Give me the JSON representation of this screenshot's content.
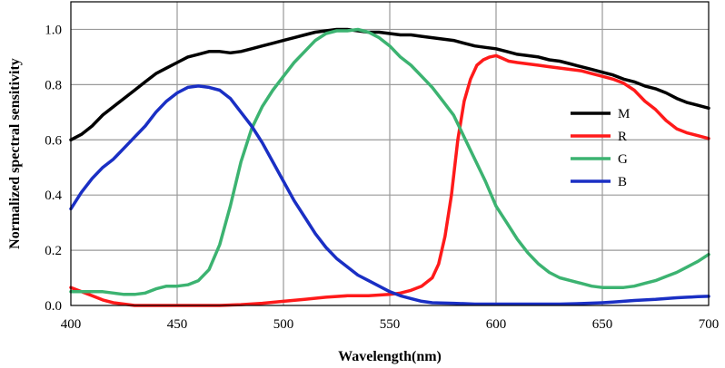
{
  "chart_data": {
    "type": "line",
    "title": "",
    "xlabel": "Wavelength(nm)",
    "ylabel": "Normalized spectral sensitivity",
    "xlim": [
      400,
      700
    ],
    "ylim": [
      0,
      1.1
    ],
    "grid": true,
    "legend_position": "right",
    "x_ticks": [
      400,
      450,
      500,
      550,
      600,
      650,
      700
    ],
    "x_tick_labels": [
      "400",
      "450",
      "500",
      "550",
      "600",
      "650",
      "700"
    ],
    "y_ticks": [
      0,
      0.2,
      0.4,
      0.6,
      0.8,
      1.0
    ],
    "y_tick_labels": [
      "0.0",
      "0.2",
      "0.4",
      "0.6",
      "0.8",
      "1.0"
    ],
    "series": [
      {
        "name": "M",
        "color": "#000000",
        "x": [
          400,
          405,
          410,
          415,
          420,
          425,
          430,
          435,
          440,
          445,
          450,
          455,
          460,
          465,
          470,
          475,
          480,
          485,
          490,
          495,
          500,
          505,
          510,
          515,
          520,
          525,
          530,
          535,
          540,
          545,
          550,
          555,
          560,
          565,
          570,
          575,
          580,
          585,
          590,
          595,
          600,
          605,
          610,
          615,
          620,
          625,
          630,
          635,
          640,
          645,
          650,
          655,
          660,
          665,
          670,
          675,
          680,
          685,
          690,
          695,
          700
        ],
        "values": [
          0.6,
          0.62,
          0.65,
          0.69,
          0.72,
          0.75,
          0.78,
          0.81,
          0.84,
          0.86,
          0.88,
          0.9,
          0.91,
          0.92,
          0.92,
          0.915,
          0.92,
          0.93,
          0.94,
          0.95,
          0.96,
          0.97,
          0.98,
          0.99,
          0.995,
          1.0,
          1.0,
          0.995,
          0.99,
          0.99,
          0.985,
          0.98,
          0.98,
          0.975,
          0.97,
          0.965,
          0.96,
          0.95,
          0.94,
          0.935,
          0.93,
          0.92,
          0.91,
          0.905,
          0.9,
          0.89,
          0.885,
          0.875,
          0.865,
          0.855,
          0.845,
          0.835,
          0.82,
          0.81,
          0.795,
          0.785,
          0.77,
          0.75,
          0.735,
          0.725,
          0.715
        ]
      },
      {
        "name": "R",
        "color": "#ff1a1a",
        "x": [
          400,
          405,
          410,
          415,
          420,
          425,
          430,
          435,
          440,
          445,
          450,
          460,
          470,
          480,
          490,
          500,
          510,
          520,
          530,
          540,
          550,
          555,
          560,
          565,
          570,
          573,
          576,
          579,
          582,
          585,
          588,
          591,
          594,
          597,
          600,
          603,
          606,
          610,
          615,
          620,
          625,
          630,
          635,
          640,
          645,
          650,
          655,
          660,
          665,
          670,
          675,
          680,
          685,
          690,
          695,
          700
        ],
        "values": [
          0.065,
          0.05,
          0.035,
          0.02,
          0.01,
          0.005,
          0.0,
          0.0,
          0.0,
          0.0,
          0.0,
          0.0,
          0.0,
          0.003,
          0.008,
          0.015,
          0.022,
          0.03,
          0.035,
          0.035,
          0.04,
          0.045,
          0.055,
          0.07,
          0.1,
          0.15,
          0.25,
          0.4,
          0.6,
          0.74,
          0.82,
          0.87,
          0.89,
          0.9,
          0.905,
          0.895,
          0.885,
          0.88,
          0.875,
          0.87,
          0.865,
          0.86,
          0.855,
          0.85,
          0.84,
          0.83,
          0.82,
          0.805,
          0.78,
          0.74,
          0.71,
          0.67,
          0.64,
          0.625,
          0.615,
          0.605
        ]
      },
      {
        "name": "G",
        "color": "#3cb371",
        "x": [
          400,
          405,
          410,
          415,
          420,
          425,
          430,
          435,
          440,
          445,
          450,
          455,
          460,
          465,
          470,
          475,
          480,
          485,
          490,
          495,
          500,
          505,
          510,
          515,
          520,
          525,
          530,
          535,
          540,
          545,
          550,
          555,
          560,
          565,
          570,
          575,
          580,
          585,
          590,
          595,
          600,
          605,
          610,
          615,
          620,
          625,
          630,
          635,
          640,
          645,
          650,
          655,
          660,
          665,
          670,
          675,
          680,
          685,
          690,
          695,
          700
        ],
        "values": [
          0.05,
          0.05,
          0.05,
          0.05,
          0.045,
          0.04,
          0.04,
          0.045,
          0.06,
          0.07,
          0.07,
          0.075,
          0.09,
          0.13,
          0.22,
          0.36,
          0.52,
          0.64,
          0.72,
          0.78,
          0.83,
          0.88,
          0.92,
          0.96,
          0.985,
          0.995,
          0.995,
          1.0,
          0.99,
          0.97,
          0.94,
          0.9,
          0.87,
          0.83,
          0.79,
          0.74,
          0.69,
          0.61,
          0.53,
          0.45,
          0.36,
          0.3,
          0.24,
          0.19,
          0.15,
          0.12,
          0.1,
          0.09,
          0.08,
          0.07,
          0.065,
          0.065,
          0.065,
          0.07,
          0.08,
          0.09,
          0.105,
          0.12,
          0.14,
          0.16,
          0.185
        ]
      },
      {
        "name": "B",
        "color": "#1a2fc4",
        "x": [
          400,
          405,
          410,
          415,
          420,
          425,
          430,
          435,
          440,
          445,
          450,
          455,
          460,
          465,
          470,
          475,
          480,
          485,
          490,
          495,
          500,
          505,
          510,
          515,
          520,
          525,
          530,
          535,
          540,
          545,
          550,
          555,
          560,
          565,
          570,
          580,
          590,
          600,
          610,
          620,
          630,
          640,
          650,
          655,
          660,
          665,
          670,
          675,
          680,
          685,
          690,
          695,
          700
        ],
        "values": [
          0.35,
          0.41,
          0.46,
          0.5,
          0.53,
          0.57,
          0.61,
          0.65,
          0.7,
          0.74,
          0.77,
          0.79,
          0.795,
          0.79,
          0.78,
          0.75,
          0.7,
          0.65,
          0.59,
          0.52,
          0.45,
          0.38,
          0.32,
          0.26,
          0.21,
          0.17,
          0.14,
          0.11,
          0.09,
          0.07,
          0.05,
          0.035,
          0.025,
          0.015,
          0.01,
          0.008,
          0.005,
          0.005,
          0.005,
          0.005,
          0.005,
          0.007,
          0.01,
          0.012,
          0.015,
          0.018,
          0.02,
          0.022,
          0.025,
          0.028,
          0.03,
          0.032,
          0.033
        ]
      }
    ]
  }
}
